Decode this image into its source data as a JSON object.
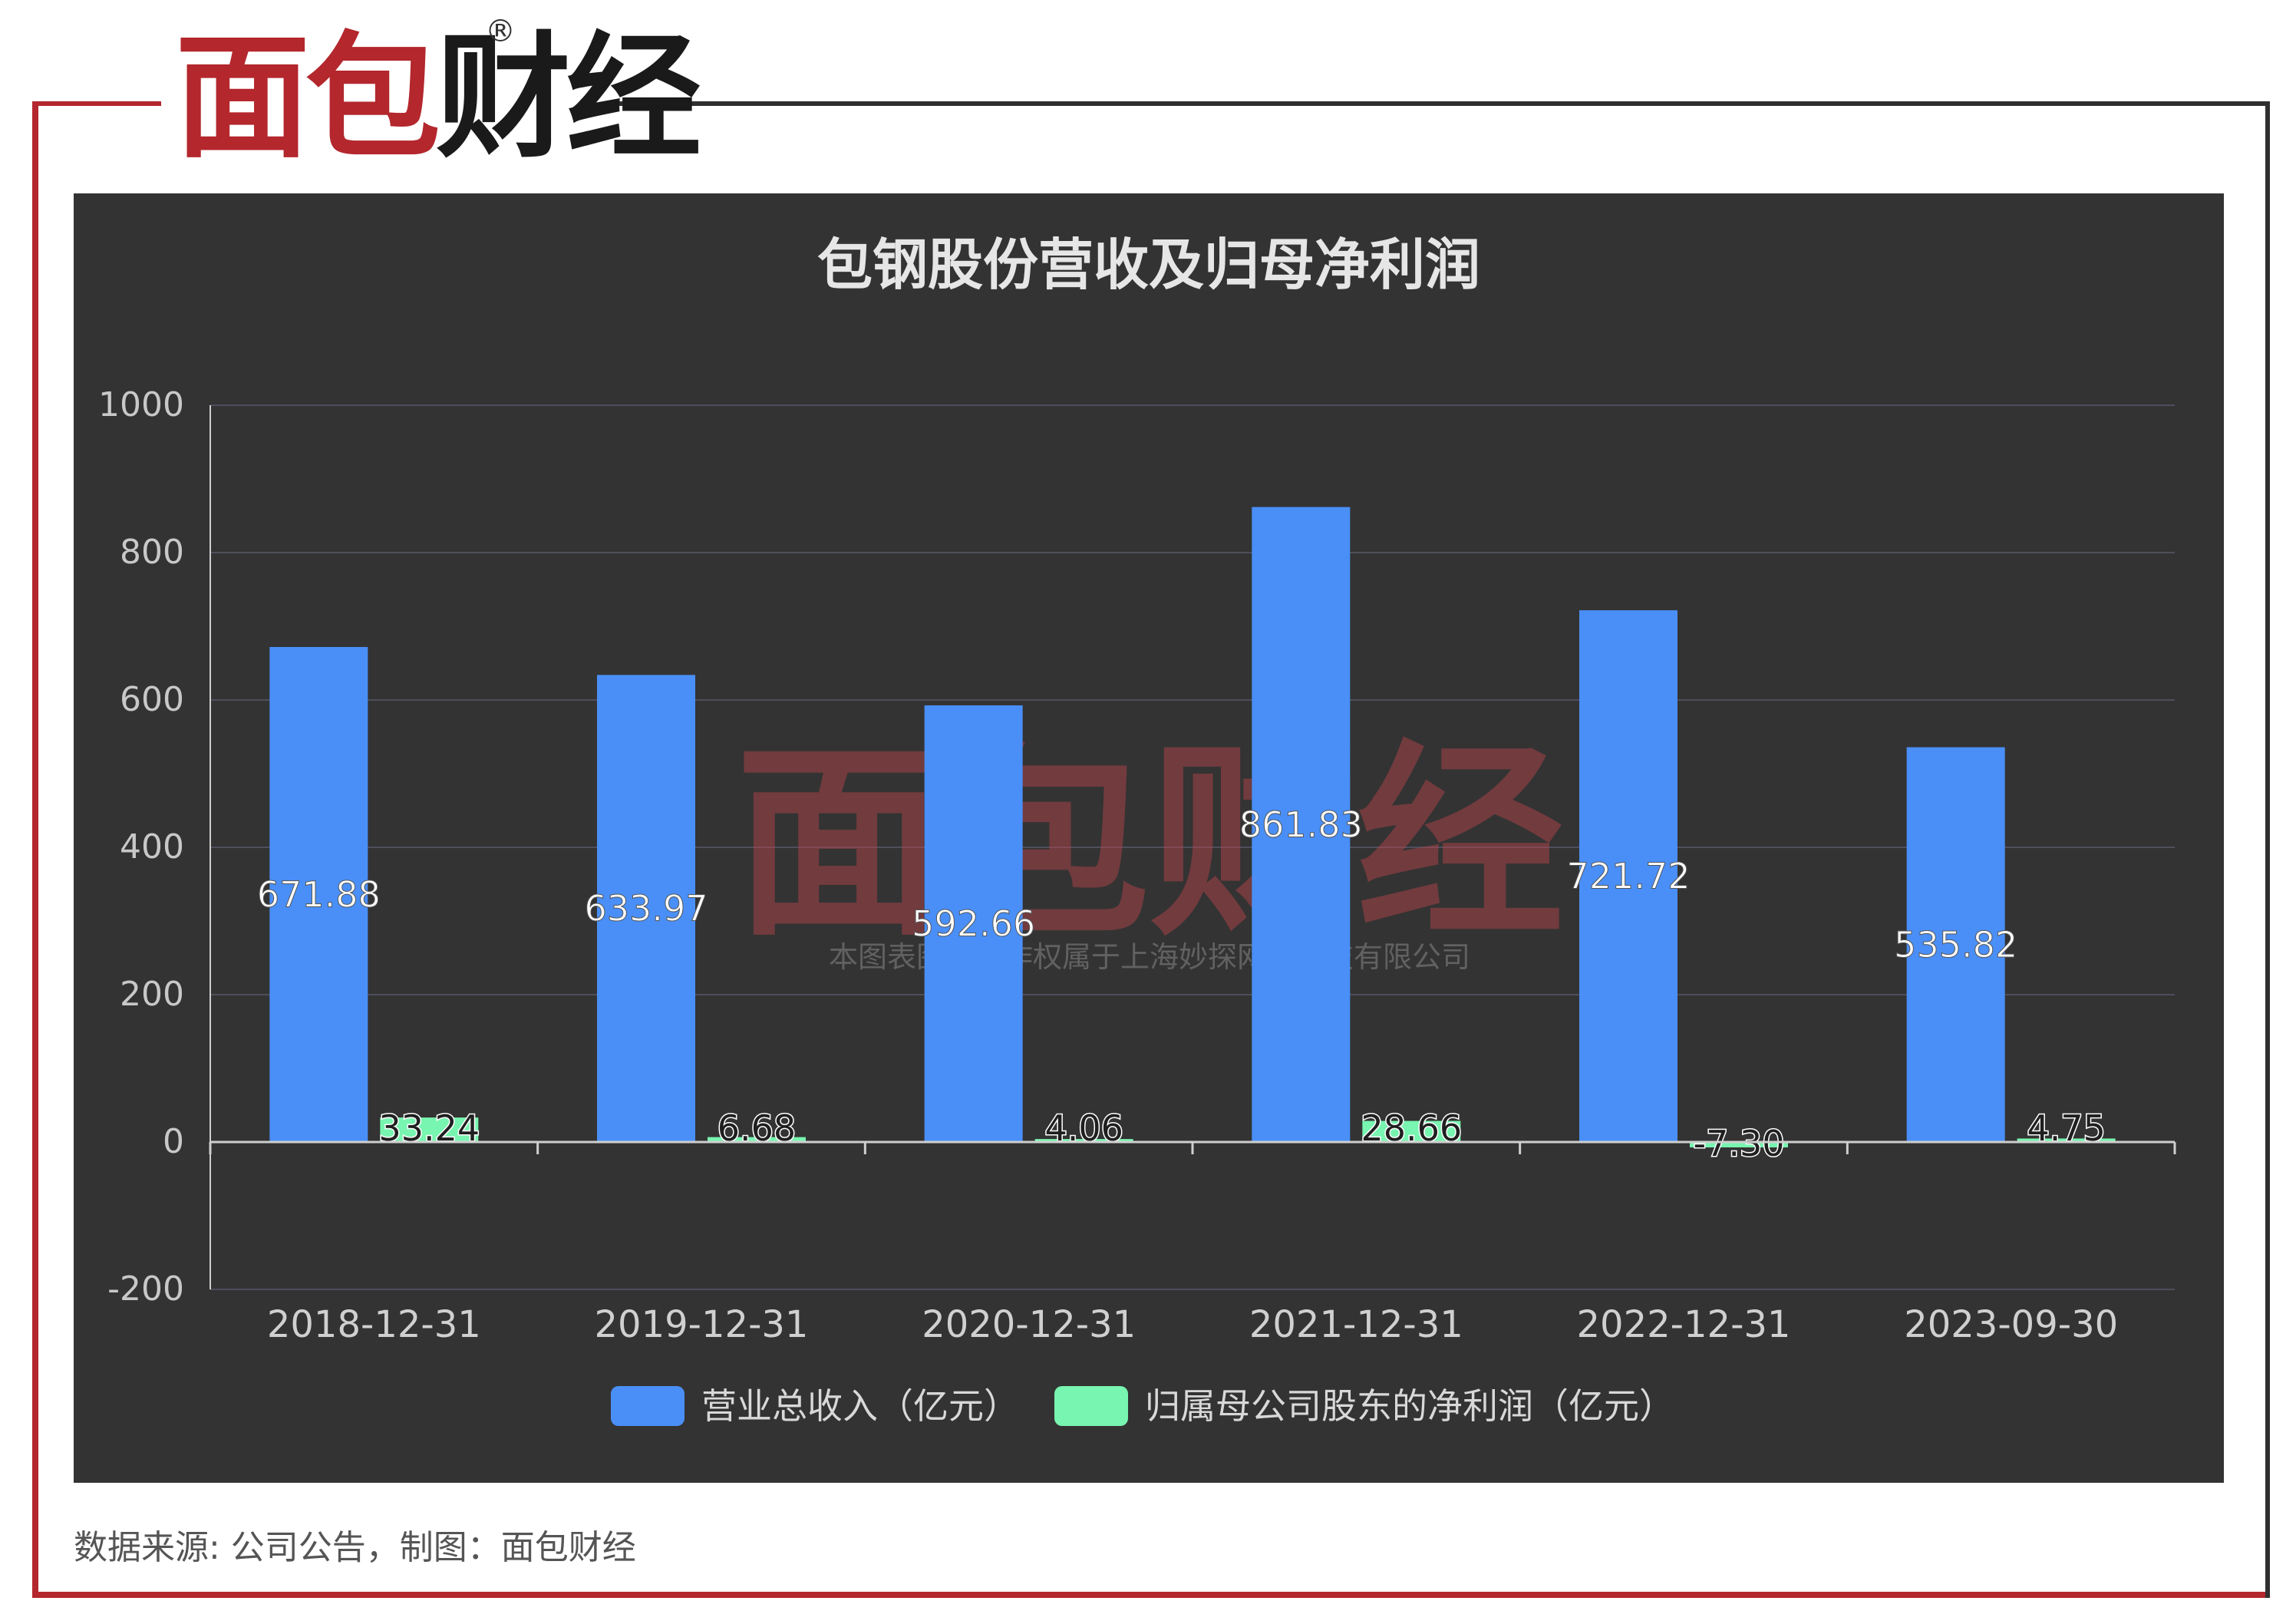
{
  "logo": {
    "part1": "面包",
    "part2": "财经",
    "reg": "®"
  },
  "watermark": {
    "logo": "面包财经",
    "reg": "®",
    "text": "本图表图片著作权属于上海妙探网络科技有限公司"
  },
  "source_text": "数据来源: 公司公告，制图：面包财经",
  "colors": {
    "revenue": "#4a8ff7",
    "profit": "#78f5b0",
    "panel_bg": "#333333",
    "brand_red": "#b3272d"
  },
  "chart_data": {
    "type": "bar",
    "title": "包钢股份营收及归母净利润",
    "categories": [
      "2018-12-31",
      "2019-12-31",
      "2020-12-31",
      "2021-12-31",
      "2022-12-31",
      "2023-09-30"
    ],
    "series": [
      {
        "name": "营业总收入（亿元）",
        "values": [
          671.88,
          633.97,
          592.66,
          861.83,
          721.72,
          535.82
        ],
        "labels": [
          "671.88",
          "633.97",
          "592.66",
          "861.83",
          "721.72",
          "535.82"
        ]
      },
      {
        "name": "归属母公司股东的净利润（亿元）",
        "values": [
          33.24,
          6.68,
          4.06,
          28.66,
          -7.3,
          4.75
        ],
        "labels": [
          "33.24",
          "6.68",
          "4.06",
          "28.66",
          "-7.30",
          "4.75"
        ]
      }
    ],
    "yticks": [
      "1000",
      "800",
      "600",
      "400",
      "200",
      "0",
      "-200"
    ],
    "ylim": [
      -200,
      1000
    ],
    "grid": true,
    "legend": "bottom"
  }
}
